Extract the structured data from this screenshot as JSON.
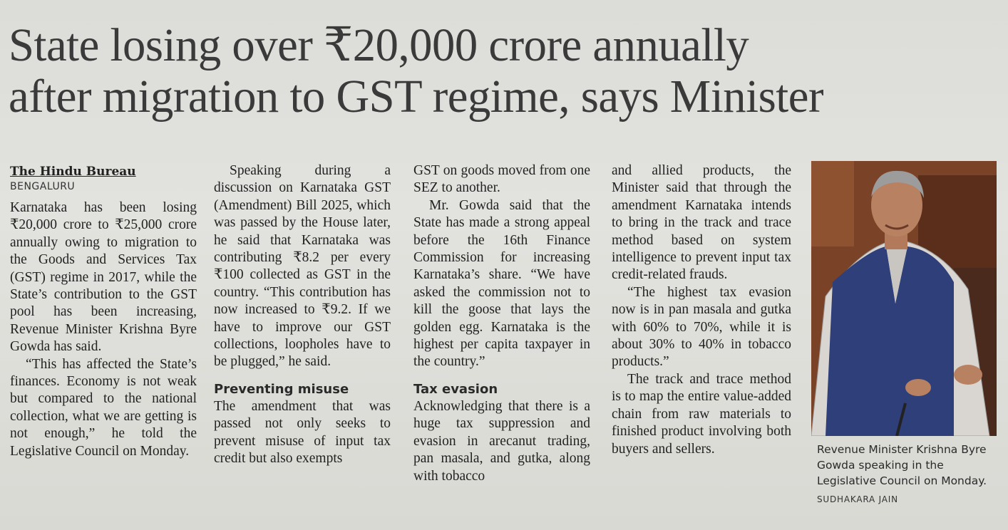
{
  "headline": {
    "line1": "State losing over ₹20,000 crore annually",
    "line2": "after migration to GST regime, says Minister"
  },
  "byline": "The Hindu Bureau",
  "dateline": "BENGALURU",
  "col1": {
    "p1": "Karnataka has been losing ₹20,000 crore to ₹25,000 crore annually owing to migration to the Goods and Services Tax (GST) regime in 2017, while the State’s contribution to the GST pool has been increasing, Revenue Minister Krishna Byre Gowda has said.",
    "p2": "“This has affected the State’s finances. Economy is not weak but compared to the national collection, what we are getting is not enough,” he told the Legislative Council on Monday."
  },
  "col2": {
    "p1": "Speaking during a discussion on Karnataka GST (Amendment) Bill 2025, which was passed by the House later, he said that Karnataka was contributing ₹8.2 per every ₹100 collected as GST in the country. “This contribution has now increased to ₹9.2. If we have to improve our GST collections, loopholes have to be plugged,” he said.",
    "subhead": "Preventing misuse",
    "p2": "The amendment that was passed not only seeks to prevent misuse of input tax credit but also exempts"
  },
  "col3": {
    "p1": "GST on goods moved from one SEZ to another.",
    "p2": "Mr. Gowda said that the State has made a strong appeal before the 16th Finance Commission for increasing Karnataka’s share. “We have asked the commission not to kill the goose that lays the golden egg. Karnataka is the highest per capita taxpayer in the country.”",
    "subhead": "Tax evasion",
    "p3": "Acknowledging that there is a huge tax suppression and evasion in arecanut trading, pan masala, and gutka, along with tobacco"
  },
  "col4": {
    "p1": "and allied products, the Minister said that through the amendment Karnataka intends to bring in the track and trace method based on system intelligence to prevent input tax credit-related frauds.",
    "p2": "“The highest tax evasion now is in pan masala and gutka with 60% to 70%, while it is about 30% to 40% in tobacco products.”",
    "p3": "The track and trace method is to map the entire value-added chain from raw materials to finished product involving both buyers and sellers."
  },
  "photo": {
    "caption": "Revenue Minister Krishna Byre Gowda speaking in the Legislative Council on Monday.",
    "credit": "SUDHAKARA JAIN"
  }
}
